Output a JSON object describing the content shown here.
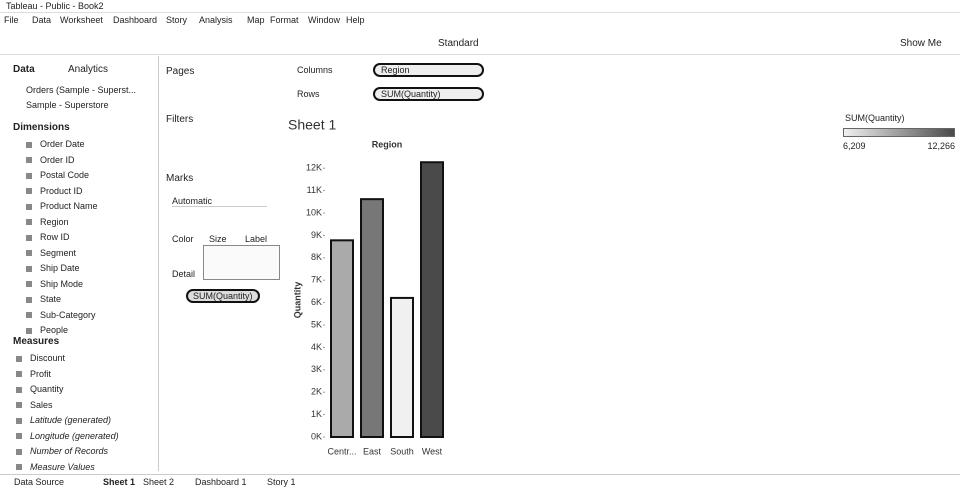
{
  "window": {
    "title": "Tableau - Public - Book2"
  },
  "menu": [
    "File",
    "Data",
    "Worksheet",
    "Dashboard",
    "Story",
    "Analysis",
    "Map",
    "Format",
    "Window",
    "Help"
  ],
  "toolbar": {
    "fit": "Standard",
    "show_me": "Show Me"
  },
  "data_pane": {
    "tabs": [
      "Data",
      "Analytics"
    ],
    "sources": [
      "Orders (Sample - Superst...",
      "Sample - Superstore"
    ],
    "dimensions_header": "Dimensions",
    "dimensions": [
      "Order Date",
      "Order ID",
      "Postal Code",
      "Product ID",
      "Product Name",
      "Region",
      "Row ID",
      "Segment",
      "Ship Date",
      "Ship Mode",
      "State",
      "Sub-Category",
      "People"
    ],
    "measures_header": "Measures",
    "measures": [
      "Discount",
      "Profit",
      "Quantity",
      "Sales",
      "Latitude (generated)",
      "Longitude (generated)",
      "Number of Records",
      "Measure Values"
    ]
  },
  "pages_label": "Pages",
  "filters_label": "Filters",
  "marks": {
    "title": "Marks",
    "type": "Automatic",
    "buttons": [
      "Color",
      "Size",
      "Label",
      "Detail"
    ],
    "pill": "SUM(Quantity)"
  },
  "shelves": {
    "columns_label": "Columns",
    "columns_pill": "Region",
    "rows_label": "Rows",
    "rows_pill": "SUM(Quantity)"
  },
  "chart_data": {
    "type": "bar",
    "title": "Sheet 1",
    "x_label": "Region",
    "y_label": "Quantity",
    "categories": [
      "Centr...",
      "East",
      "South",
      "West"
    ],
    "values": [
      8780,
      10618,
      6209,
      12266
    ],
    "ylim": [
      0,
      12500
    ],
    "yticks": [
      {
        "value": 0,
        "label": "0K"
      },
      {
        "value": 1000,
        "label": "1K"
      },
      {
        "value": 2000,
        "label": "2K"
      },
      {
        "value": 3000,
        "label": "3K"
      },
      {
        "value": 4000,
        "label": "4K"
      },
      {
        "value": 5000,
        "label": "5K"
      },
      {
        "value": 6000,
        "label": "6K"
      },
      {
        "value": 7000,
        "label": "7K"
      },
      {
        "value": 8000,
        "label": "8K"
      },
      {
        "value": 9000,
        "label": "9K"
      },
      {
        "value": 10000,
        "label": "10K"
      },
      {
        "value": 11000,
        "label": "11K"
      },
      {
        "value": 12000,
        "label": "12K"
      }
    ],
    "color_legend": {
      "title": "SUM(Quantity)",
      "colors": [
        "#f0f0f0",
        "#4a4a4a"
      ],
      "min": {
        "value": 6209,
        "label": "6,209"
      },
      "max": {
        "value": 12266,
        "label": "12,266"
      }
    }
  },
  "tabs": [
    "Data Source",
    "Sheet 1",
    "Sheet 2",
    "Dashboard 1",
    "Story 1"
  ]
}
